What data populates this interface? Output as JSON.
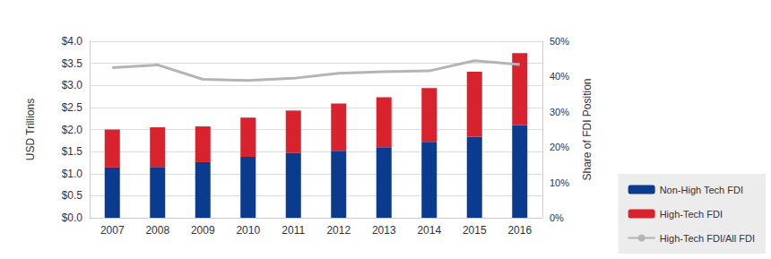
{
  "chart_data": {
    "type": "bar",
    "stacked": true,
    "grid": true,
    "legend": "bottom-right",
    "y_label": "USD Trillions",
    "y2_label": "Share of FDI Position",
    "categories": [
      "2007",
      "2008",
      "2009",
      "2010",
      "2011",
      "2012",
      "2013",
      "2014",
      "2015",
      "2016"
    ],
    "ylim": [
      0,
      4
    ],
    "yticks": [
      {
        "value": 0,
        "label": "$0.0"
      },
      {
        "value": 0.5,
        "label": "$0.5"
      },
      {
        "value": 1,
        "label": "$1.0"
      },
      {
        "value": 1.5,
        "label": "$1.5"
      },
      {
        "value": 2,
        "label": "$2.0"
      },
      {
        "value": 2.5,
        "label": "$2.5"
      },
      {
        "value": 3,
        "label": "$3.0"
      },
      {
        "value": 3.5,
        "label": "$3.5"
      },
      {
        "value": 4,
        "label": "$4.0"
      }
    ],
    "y2lim": [
      0,
      50
    ],
    "y2ticks": [
      {
        "value": 0,
        "label": "0%"
      },
      {
        "value": 10,
        "label": "10%"
      },
      {
        "value": 20,
        "label": "20%"
      },
      {
        "value": 30,
        "label": "30%"
      },
      {
        "value": 40,
        "label": "40%"
      },
      {
        "value": 50,
        "label": "50%"
      }
    ],
    "series": [
      {
        "name": "Non-High Tech FDI",
        "type": "bar",
        "color": "#0b3b8f",
        "values": [
          1.14,
          1.15,
          1.26,
          1.38,
          1.47,
          1.52,
          1.6,
          1.72,
          1.84,
          2.1
        ]
      },
      {
        "name": "High-Tech FDI",
        "type": "bar",
        "color": "#d8232e",
        "values": [
          0.86,
          0.9,
          0.81,
          0.89,
          0.96,
          1.07,
          1.13,
          1.22,
          1.47,
          1.63
        ]
      },
      {
        "name": "High-Tech FDI/All FDI",
        "type": "line",
        "axis": "y2",
        "color": "#b4b4b4",
        "marker": "none",
        "values": [
          42.5,
          43.3,
          39.2,
          38.9,
          39.5,
          40.9,
          41.4,
          41.6,
          44.5,
          43.4
        ]
      }
    ]
  }
}
